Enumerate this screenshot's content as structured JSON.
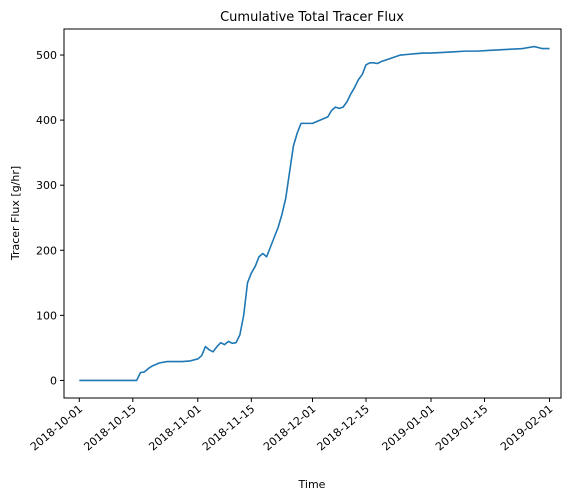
{
  "chart_data": {
    "type": "line",
    "title": "Cumulative Total Tracer Flux",
    "xlabel": "Time",
    "ylabel": "Tracer Flux [g/hr]",
    "x_type": "date",
    "xlim": [
      "2018-09-27",
      "2019-02-04"
    ],
    "ylim": [
      -27,
      540
    ],
    "xticks": [
      "2018-10-01",
      "2018-10-15",
      "2018-11-01",
      "2018-11-15",
      "2018-12-01",
      "2018-12-15",
      "2019-01-01",
      "2019-01-15",
      "2019-02-01"
    ],
    "yticks": [
      0,
      100,
      200,
      300,
      400,
      500
    ],
    "grid": false,
    "line_color": "#1f77b4",
    "series": [
      {
        "x": [
          "2018-10-01",
          "2018-10-05",
          "2018-10-10",
          "2018-10-14",
          "2018-10-15",
          "2018-10-16",
          "2018-10-17",
          "2018-10-18",
          "2018-10-19",
          "2018-10-20",
          "2018-10-22",
          "2018-10-24",
          "2018-10-26",
          "2018-10-28",
          "2018-10-30",
          "2018-11-01",
          "2018-11-02",
          "2018-11-03",
          "2018-11-04",
          "2018-11-05",
          "2018-11-06",
          "2018-11-07",
          "2018-11-08",
          "2018-11-09",
          "2018-11-10",
          "2018-11-11",
          "2018-11-12",
          "2018-11-13",
          "2018-11-14",
          "2018-11-15",
          "2018-11-16",
          "2018-11-17",
          "2018-11-18",
          "2018-11-19",
          "2018-11-20",
          "2018-11-21",
          "2018-11-22",
          "2018-11-23",
          "2018-11-24",
          "2018-11-25",
          "2018-11-26",
          "2018-11-27",
          "2018-11-28",
          "2018-11-29",
          "2018-11-30",
          "2018-12-01",
          "2018-12-03",
          "2018-12-05",
          "2018-12-06",
          "2018-12-07",
          "2018-12-08",
          "2018-12-09",
          "2018-12-10",
          "2018-12-11",
          "2018-12-12",
          "2018-12-13",
          "2018-12-14",
          "2018-12-15",
          "2018-12-16",
          "2018-12-17",
          "2018-12-18",
          "2018-12-19",
          "2018-12-20",
          "2018-12-22",
          "2018-12-24",
          "2018-12-26",
          "2018-12-28",
          "2018-12-30",
          "2019-01-01",
          "2019-01-04",
          "2019-01-07",
          "2019-01-10",
          "2019-01-13",
          "2019-01-16",
          "2019-01-19",
          "2019-01-22",
          "2019-01-25",
          "2019-01-28",
          "2019-01-30",
          "2019-02-01"
        ],
        "y": [
          0,
          0,
          0,
          0,
          0,
          0,
          12,
          13,
          18,
          22,
          27,
          29,
          29,
          29,
          30,
          33,
          38,
          52,
          47,
          44,
          52,
          58,
          55,
          60,
          57,
          58,
          70,
          100,
          150,
          165,
          175,
          190,
          195,
          190,
          205,
          220,
          235,
          255,
          280,
          320,
          360,
          380,
          395,
          395,
          395,
          395,
          400,
          405,
          415,
          420,
          418,
          420,
          428,
          440,
          450,
          462,
          470,
          485,
          488,
          488,
          487,
          490,
          492,
          496,
          500,
          501,
          502,
          503,
          503,
          504,
          505,
          506,
          506,
          507,
          508,
          509,
          510,
          513,
          510,
          510
        ]
      }
    ]
  }
}
